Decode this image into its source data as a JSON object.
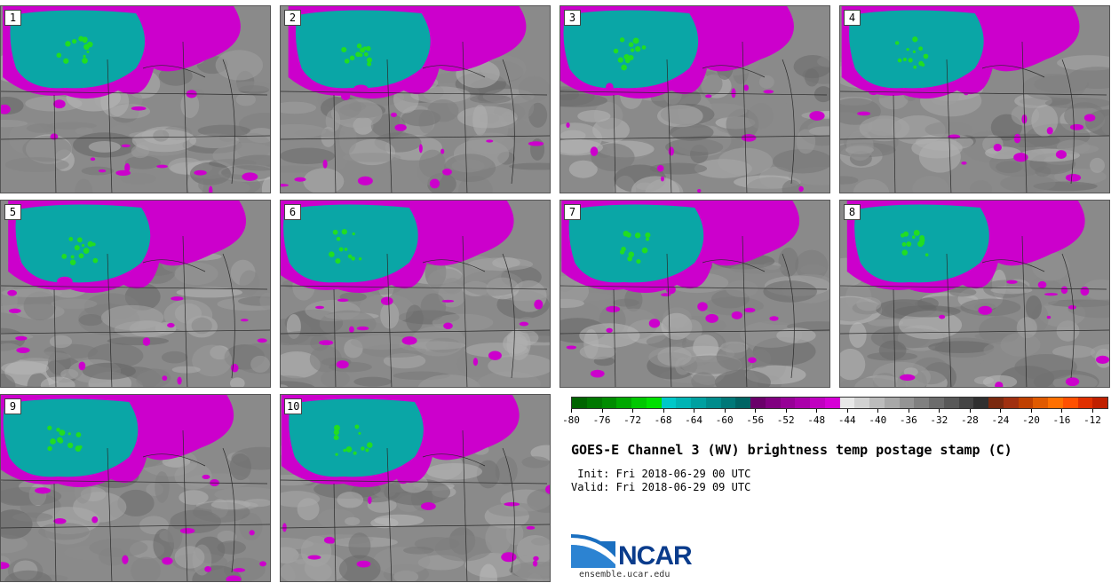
{
  "panels": [
    {
      "label": "1"
    },
    {
      "label": "2"
    },
    {
      "label": "3"
    },
    {
      "label": "4"
    },
    {
      "label": "5"
    },
    {
      "label": "6"
    },
    {
      "label": "7"
    },
    {
      "label": "8"
    },
    {
      "label": "9"
    },
    {
      "label": "10"
    }
  ],
  "colorbar": {
    "colors": [
      "#006400",
      "#007800",
      "#008c00",
      "#00a800",
      "#00c800",
      "#00e000",
      "#00c8c8",
      "#00b4b4",
      "#00a0a0",
      "#008c8c",
      "#007878",
      "#006464",
      "#6a006a",
      "#800080",
      "#960096",
      "#aa00aa",
      "#c000c0",
      "#d600d6",
      "#e8e8e8",
      "#d2d2d2",
      "#bcbcbc",
      "#a8a8a8",
      "#949494",
      "#808080",
      "#6c6c6c",
      "#585858",
      "#444444",
      "#303030",
      "#7a2a10",
      "#a03010",
      "#c04000",
      "#e05a00",
      "#ff7000",
      "#ff5000",
      "#e03000",
      "#c02000"
    ],
    "tick_labels": [
      "-80",
      "-76",
      "-72",
      "-68",
      "-64",
      "-60",
      "-56",
      "-52",
      "-48",
      "-44",
      "-40",
      "-36",
      "-32",
      "-28",
      "-24",
      "-20",
      "-16",
      "-12"
    ]
  },
  "title": "GOES-E Channel 3 (WV) brightness temp postage stamp (C)",
  "init_line": " Init: Fri 2018-06-29 00 UTC",
  "valid_line": "Valid: Fri 2018-06-29 09 UTC",
  "logo_text": "NCAR",
  "site": "ensemble.ucar.edu"
}
